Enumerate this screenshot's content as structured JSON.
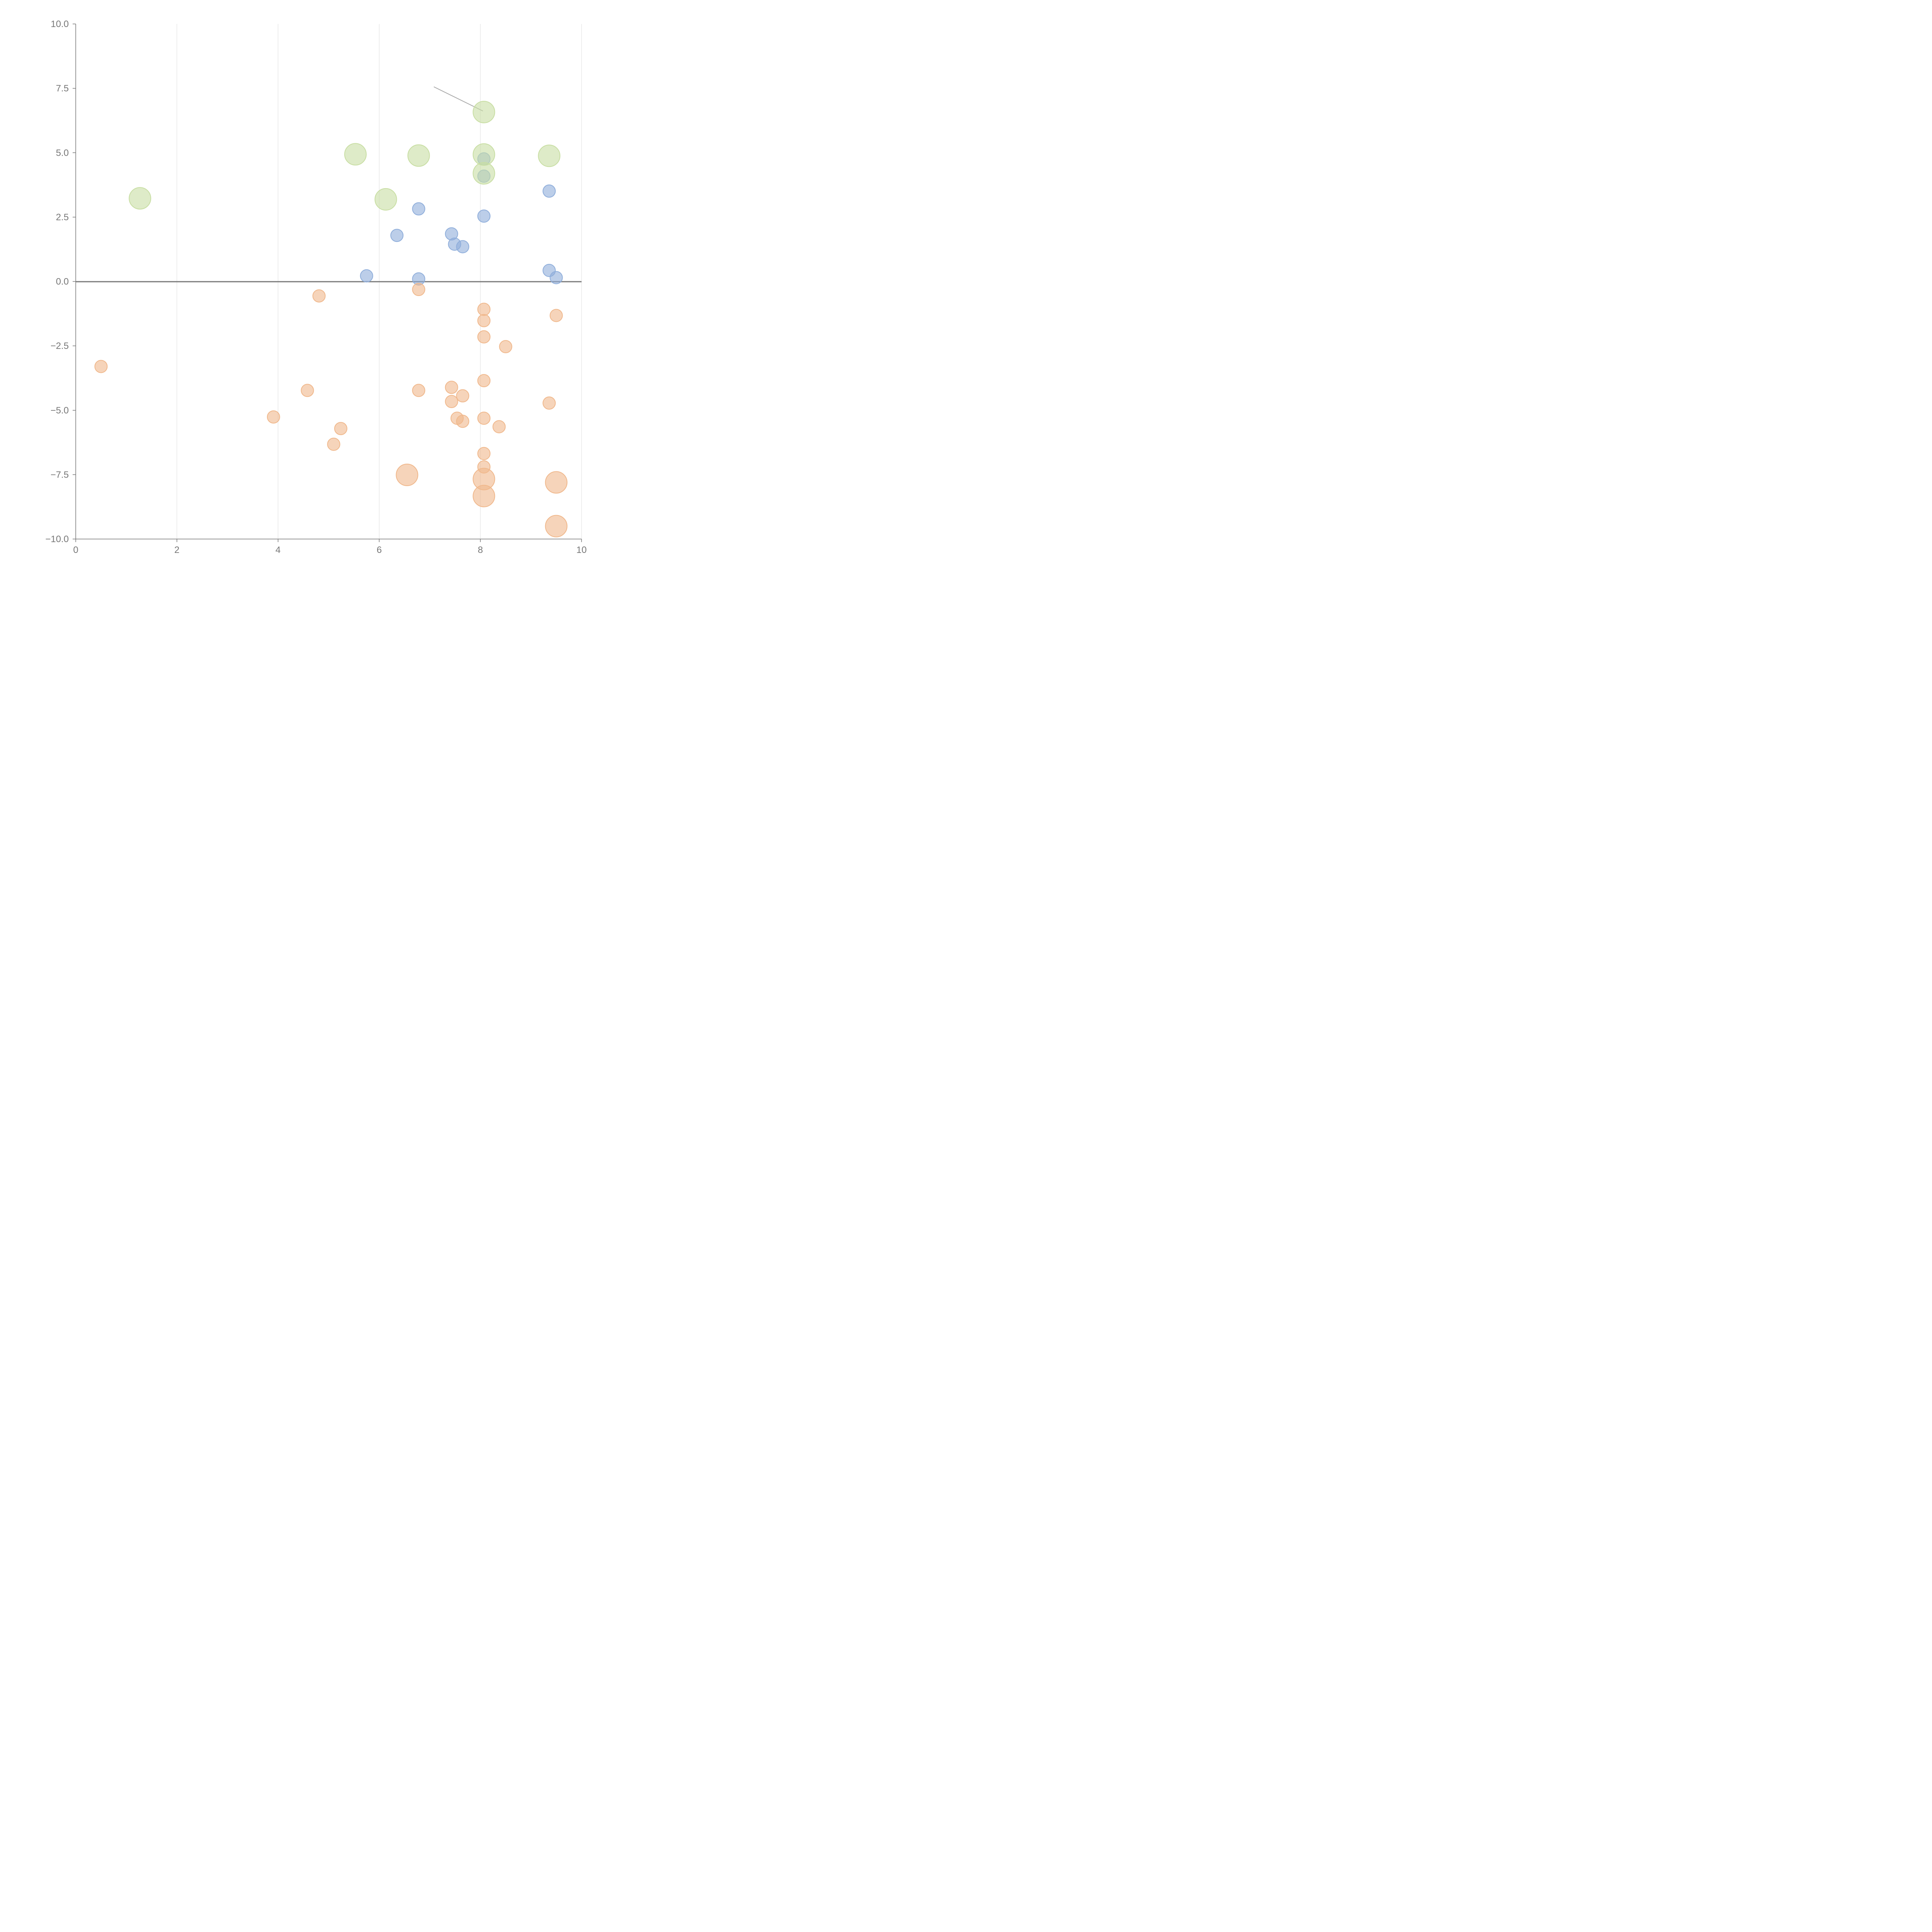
{
  "chart_data": {
    "type": "scatter",
    "title": "",
    "xlabel": "",
    "ylabel": "",
    "xlim": [
      0,
      10
    ],
    "ylim": [
      -10,
      10
    ],
    "x_ticks": [
      0,
      2,
      4,
      6,
      8,
      10
    ],
    "x_tick_labels": [
      "0",
      "2",
      "4",
      "6",
      "8",
      "10"
    ],
    "y_ticks": [
      10,
      7.5,
      5,
      2.5,
      0,
      -2.5,
      -5,
      -7.5,
      -10
    ],
    "y_tick_labels": [
      "10.0",
      "7.5",
      "5.0",
      "2.5",
      "0.0",
      "−2.5",
      "−5.0",
      "−7.5",
      "−10.0"
    ],
    "grid": "vertical lines at x ticks",
    "reference_line_y": 0,
    "series": [
      {
        "name": "blue",
        "color": "#8faedb",
        "size": "small",
        "points": [
          {
            "x": 5.75,
            "y": 0.22
          },
          {
            "x": 6.35,
            "y": 1.79
          },
          {
            "x": 6.78,
            "y": 2.82
          },
          {
            "x": 6.78,
            "y": 0.1
          },
          {
            "x": 7.43,
            "y": 1.85
          },
          {
            "x": 7.49,
            "y": 1.45
          },
          {
            "x": 7.65,
            "y": 1.35
          },
          {
            "x": 8.07,
            "y": 2.54
          },
          {
            "x": 8.07,
            "y": 4.76
          },
          {
            "x": 8.07,
            "y": 4.09
          },
          {
            "x": 9.36,
            "y": 3.51
          },
          {
            "x": 9.36,
            "y": 0.43
          },
          {
            "x": 9.5,
            "y": 0.15
          }
        ]
      },
      {
        "name": "orange",
        "color": "#f0b88c",
        "size": "small",
        "points": [
          {
            "x": 0.5,
            "y": -3.3
          },
          {
            "x": 3.91,
            "y": -5.26
          },
          {
            "x": 4.58,
            "y": -4.23
          },
          {
            "x": 4.81,
            "y": -0.56
          },
          {
            "x": 5.1,
            "y": -6.32
          },
          {
            "x": 5.24,
            "y": -5.71
          },
          {
            "x": 6.78,
            "y": -0.31
          },
          {
            "x": 6.78,
            "y": -4.23
          },
          {
            "x": 7.43,
            "y": -4.11
          },
          {
            "x": 7.43,
            "y": -4.66
          },
          {
            "x": 7.54,
            "y": -5.31
          },
          {
            "x": 7.65,
            "y": -4.44
          },
          {
            "x": 7.65,
            "y": -5.43
          },
          {
            "x": 8.07,
            "y": -1.08
          },
          {
            "x": 8.07,
            "y": -1.52
          },
          {
            "x": 8.07,
            "y": -2.15
          },
          {
            "x": 8.07,
            "y": -3.85
          },
          {
            "x": 8.07,
            "y": -5.31
          },
          {
            "x": 8.07,
            "y": -6.68
          },
          {
            "x": 8.07,
            "y": -7.2
          },
          {
            "x": 8.37,
            "y": -5.64
          },
          {
            "x": 8.5,
            "y": -2.53
          },
          {
            "x": 9.36,
            "y": -4.72
          },
          {
            "x": 9.5,
            "y": -1.32
          }
        ]
      },
      {
        "name": "orange-large",
        "color": "#f0b88c",
        "size": "large",
        "points": [
          {
            "x": 6.55,
            "y": -7.51
          },
          {
            "x": 8.07,
            "y": -7.67
          },
          {
            "x": 8.07,
            "y": -8.33
          },
          {
            "x": 9.5,
            "y": -7.8
          },
          {
            "x": 9.5,
            "y": -9.5
          }
        ]
      },
      {
        "name": "green-large",
        "color": "#c8dea3",
        "size": "large",
        "points": [
          {
            "x": 1.27,
            "y": 3.23
          },
          {
            "x": 5.53,
            "y": 4.94
          },
          {
            "x": 6.13,
            "y": 3.19
          },
          {
            "x": 6.78,
            "y": 4.89
          },
          {
            "x": 8.07,
            "y": 6.58
          },
          {
            "x": 8.07,
            "y": 4.93
          },
          {
            "x": 8.07,
            "y": 4.2
          },
          {
            "x": 9.36,
            "y": 4.88
          }
        ]
      }
    ],
    "annotation_line": {
      "from": {
        "x": 7.08,
        "y": 7.56
      },
      "to": {
        "x": 8.05,
        "y": 6.62
      }
    }
  }
}
